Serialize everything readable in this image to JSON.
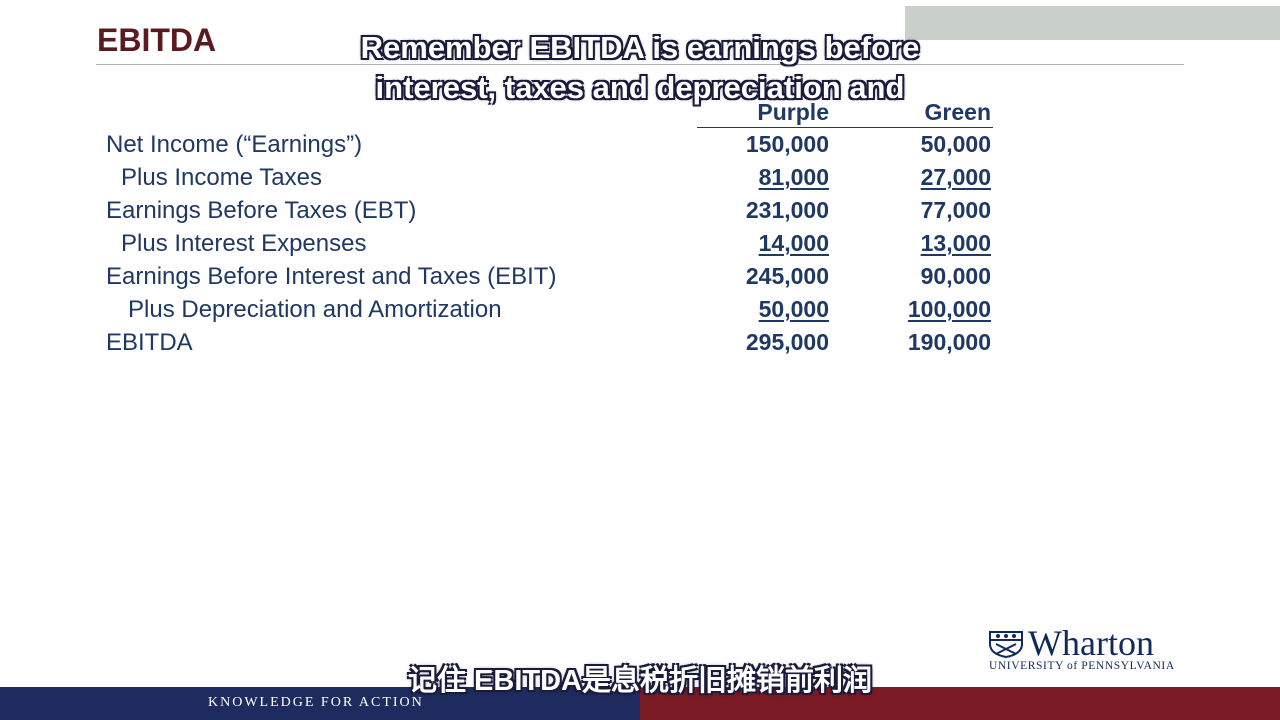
{
  "slide": {
    "title": "EBITDA",
    "subtitle_top_line1": "Remember EBITDA is earnings before",
    "subtitle_top_line2": "interest, taxes and depreciation and",
    "subtitle_bottom": "记住 EBITDA是息税折旧摊销前利润",
    "columns": {
      "col1": "Purple",
      "col2": "Green"
    },
    "rows": [
      {
        "label": "Net Income (“Earnings”)",
        "purple": "150,000",
        "green": "50,000"
      },
      {
        "label": "Plus Income Taxes",
        "purple": "81,000",
        "green": "27,000"
      },
      {
        "label": "Earnings Before Taxes (EBT)",
        "purple": "231,000",
        "green": "77,000"
      },
      {
        "label": "Plus Interest Expenses",
        "purple": "14,000",
        "green": "13,000"
      },
      {
        "label": "Earnings Before Interest and Taxes (EBIT)",
        "purple": "245,000",
        "green": "90,000"
      },
      {
        "label": "Plus Depreciation and Amortization",
        "purple": "50,000",
        "green": "100,000"
      },
      {
        "label": "EBITDA",
        "purple": "295,000",
        "green": "190,000"
      }
    ],
    "logo": {
      "word": "Wharton",
      "sub": "UNIVERSITY of PENNSYLVANIA",
      "icon": "penn-shield-icon"
    },
    "footer": "KNOWLEDGE FOR ACTION",
    "colors": {
      "navy": "#1f3864",
      "maroon": "#5a1a1f",
      "footer_navy": "#1e2b5e",
      "footer_red": "#7a1a24"
    }
  }
}
